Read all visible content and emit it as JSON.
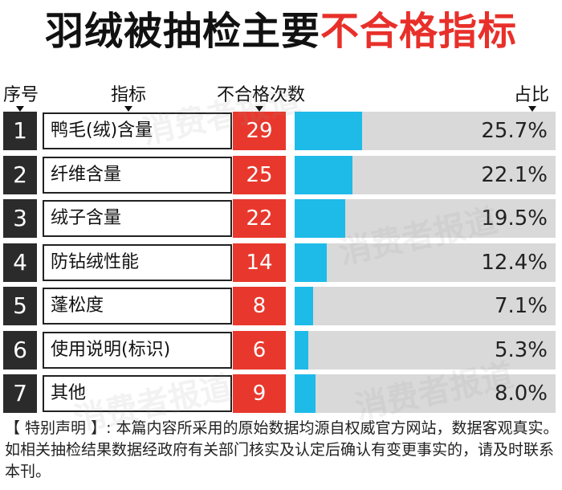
{
  "title": {
    "main": "羽绒被抽检主要",
    "highlight": "不合格指标"
  },
  "headers": {
    "seq": "序号",
    "indicator": "指标",
    "count": "不合格次数",
    "ratio": "占比"
  },
  "chart_data": {
    "type": "bar",
    "title": "羽绒被抽检主要不合格指标",
    "categories": [
      "鸭毛(绒)含量",
      "纤维含量",
      "绒子含量",
      "防钻绒性能",
      "蓬松度",
      "使用说明(标识)",
      "其他"
    ],
    "values": [
      29,
      25,
      22,
      14,
      8,
      6,
      9
    ],
    "percent": [
      25.7,
      22.1,
      19.5,
      12.4,
      7.1,
      5.3,
      8.0
    ],
    "percent_labels": [
      "25.7%",
      "22.1%",
      "19.5%",
      "12.4%",
      "7.1%",
      "5.3%",
      "8.0%"
    ],
    "ids": [
      "1",
      "2",
      "3",
      "4",
      "5",
      "6",
      "7"
    ],
    "xlabel": "占比",
    "ylabel": "不合格次数",
    "ylim": [
      0,
      100
    ]
  },
  "watermark": "消费者报道",
  "note": "【 特别声明 】: 本篇内容所采用的原始数据均源自权威官方网站，数据客观真实。如相关抽检结果数据经政府有关部门核实及认定后确认有变更事实的，请及时联系本刊。",
  "colors": {
    "accent": "#e8302a",
    "bar": "#1ebbe9",
    "track": "#d9d9d9",
    "id_bg": "#2b2b2b"
  }
}
